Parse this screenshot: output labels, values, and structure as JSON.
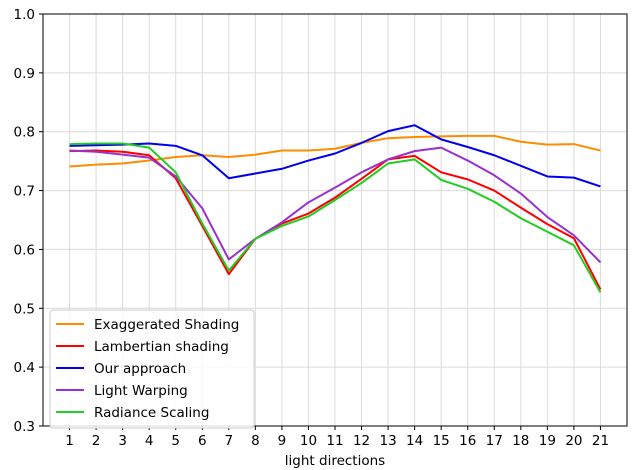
{
  "chart_data": {
    "type": "line",
    "title": "",
    "xlabel": "light directions",
    "ylabel": "",
    "x": [
      1,
      2,
      3,
      4,
      5,
      6,
      7,
      8,
      9,
      10,
      11,
      12,
      13,
      14,
      15,
      16,
      17,
      18,
      19,
      20,
      21
    ],
    "xticks": [
      "1",
      "2",
      "3",
      "4",
      "5",
      "6",
      "7",
      "8",
      "9",
      "10",
      "11",
      "12",
      "13",
      "14",
      "15",
      "16",
      "17",
      "18",
      "19",
      "20",
      "21"
    ],
    "ylim": [
      0.3,
      1.0
    ],
    "yticks": [
      "0.3",
      "0.4",
      "0.5",
      "0.6",
      "0.7",
      "0.8",
      "0.9",
      "1.0"
    ],
    "grid": true,
    "legend_position": "lower-left",
    "series": [
      {
        "name": "Exaggerated Shading",
        "color": "#ff8c00",
        "values": [
          0.741,
          0.744,
          0.746,
          0.751,
          0.757,
          0.76,
          0.757,
          0.761,
          0.768,
          0.768,
          0.771,
          0.781,
          0.789,
          0.791,
          0.792,
          0.793,
          0.793,
          0.783,
          0.778,
          0.779,
          0.768
        ]
      },
      {
        "name": "Lambertian shading",
        "color": "#ff0000",
        "values": [
          0.767,
          0.768,
          0.766,
          0.76,
          0.721,
          0.64,
          0.558,
          0.618,
          0.644,
          0.661,
          0.688,
          0.72,
          0.753,
          0.759,
          0.731,
          0.719,
          0.7,
          0.671,
          0.643,
          0.619,
          0.532
        ]
      },
      {
        "name": "Our approach",
        "color": "#0000ee",
        "values": [
          0.776,
          0.777,
          0.778,
          0.78,
          0.776,
          0.76,
          0.721,
          0.729,
          0.737,
          0.751,
          0.763,
          0.781,
          0.801,
          0.811,
          0.787,
          0.774,
          0.76,
          0.742,
          0.724,
          0.722,
          0.707
        ]
      },
      {
        "name": "Light Warping",
        "color": "#9932cc",
        "values": [
          0.768,
          0.766,
          0.761,
          0.756,
          0.724,
          0.67,
          0.583,
          0.618,
          0.646,
          0.68,
          0.705,
          0.731,
          0.753,
          0.767,
          0.773,
          0.751,
          0.726,
          0.695,
          0.655,
          0.624,
          0.578
        ]
      },
      {
        "name": "Radiance Scaling",
        "color": "#22cc22",
        "values": [
          0.779,
          0.78,
          0.78,
          0.773,
          0.731,
          0.644,
          0.564,
          0.618,
          0.64,
          0.656,
          0.684,
          0.713,
          0.746,
          0.753,
          0.718,
          0.703,
          0.681,
          0.653,
          0.63,
          0.607,
          0.527
        ]
      }
    ]
  }
}
